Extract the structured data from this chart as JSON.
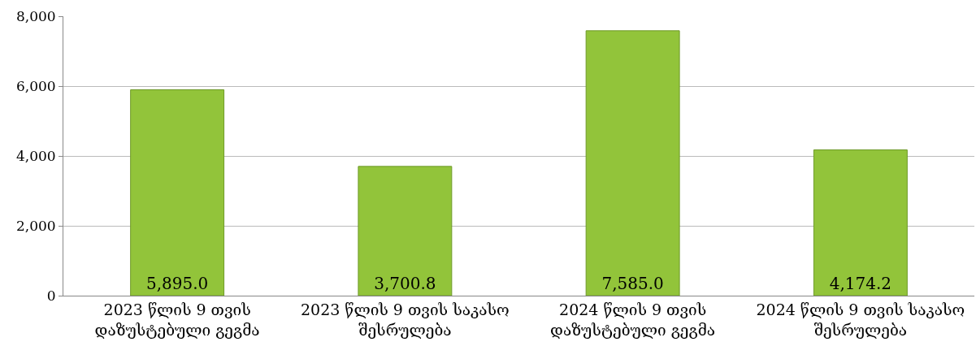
{
  "chart_data": {
    "type": "bar",
    "categories": [
      "2023 წლის 9 თვის\nდაზუსტებული გეგმა",
      "2023 წლის 9 თვის საკასო\nშესრულება",
      "2024 წლის 9 თვის\nდაზუსტებული გეგმა",
      "2024 წლის 9 თვის საკასო\nშესრულება"
    ],
    "values": [
      5895.0,
      3700.8,
      7585.0,
      4174.2
    ],
    "value_labels": [
      "5,895.0",
      "3,700.8",
      "7,585.0",
      "4,174.2"
    ],
    "color": "#92c43a",
    "ylim": [
      0,
      8000
    ],
    "yticks": [
      {
        "value": 0,
        "label": "0"
      },
      {
        "value": 2000,
        "label": "2,000"
      },
      {
        "value": 4000,
        "label": "4,000"
      },
      {
        "value": 6000,
        "label": "6,000"
      },
      {
        "value": 8000,
        "label": "8,000"
      }
    ],
    "grid": "y"
  }
}
